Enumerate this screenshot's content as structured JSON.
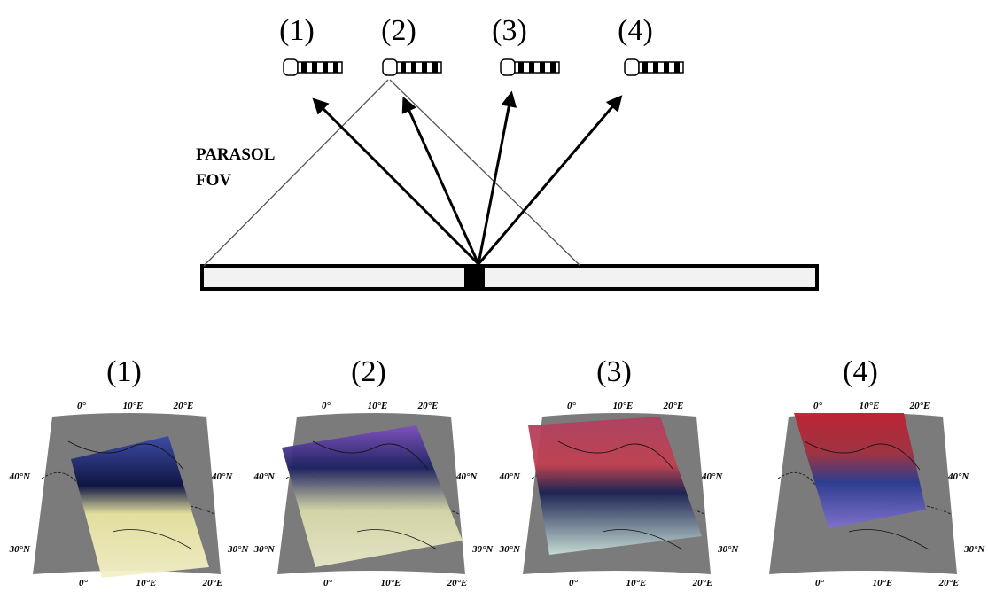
{
  "diagram": {
    "views": [
      "(1)",
      "(2)",
      "(3)",
      "(4)"
    ],
    "fov_label": [
      "PARASOL",
      "FOV"
    ]
  },
  "maps": [
    {
      "title": "(1)",
      "top_lon": [
        "0°",
        "10°E",
        "20°E"
      ],
      "bottom_lon": [
        "0°",
        "10°E",
        "20°E"
      ],
      "left_lat": [
        "40°N",
        "30°N"
      ],
      "right_lat": [
        "40°N",
        "30°N"
      ]
    },
    {
      "title": "(2)",
      "top_lon": [
        "0°",
        "10°E",
        "20°E"
      ],
      "bottom_lon": [
        "0°",
        "10°E",
        "20°E"
      ],
      "left_lat": [
        "40°N",
        "30°N"
      ],
      "right_lat": [
        "40°N",
        "30°N"
      ]
    },
    {
      "title": "(3)",
      "top_lon": [
        "0°",
        "10°E",
        "20°E"
      ],
      "bottom_lon": [
        "0°",
        "10°E",
        "20°E"
      ],
      "left_lat": [
        "40°N",
        "30°N"
      ],
      "right_lat": [
        "40°N",
        "30°N"
      ]
    },
    {
      "title": "(4)",
      "top_lon": [
        "0°",
        "10°E",
        "20°E"
      ],
      "bottom_lon": [
        "0°",
        "10°E",
        "20°E"
      ],
      "left_lat": [],
      "right_lat": [
        "40°N",
        "30°N"
      ]
    }
  ]
}
